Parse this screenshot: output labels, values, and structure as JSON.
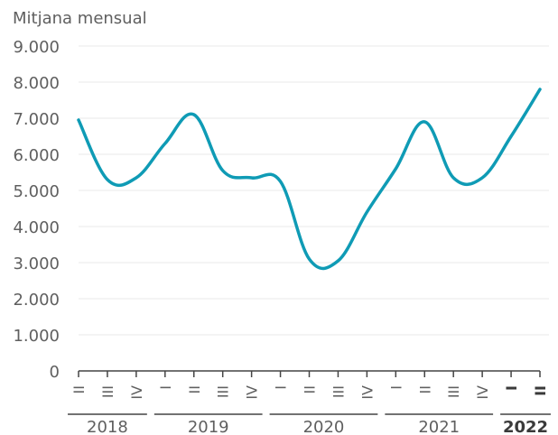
{
  "chart_data": {
    "type": "line",
    "ylabel": "Mitjana mensual",
    "xlabel": "",
    "title": "",
    "ylim": [
      0,
      9000
    ],
    "y_ticks": [
      "0",
      "1.000",
      "2.000",
      "3.000",
      "4.000",
      "5.000",
      "6.000",
      "7.000",
      "8.000",
      "9.000"
    ],
    "y_tick_values": [
      0,
      1000,
      2000,
      3000,
      4000,
      5000,
      6000,
      7000,
      8000,
      9000
    ],
    "grid": true,
    "legend": "none",
    "colors": {
      "line": "#0f9bb5",
      "grid": "#e9e9e9",
      "axis": "#444444",
      "text": "#5f5f5f",
      "bold": "#3a3a3a"
    },
    "categories": [
      "II",
      "III",
      "IV",
      "I",
      "II",
      "III",
      "IV",
      "I",
      "II",
      "III",
      "IV",
      "I",
      "II",
      "III",
      "IV",
      "I",
      "II"
    ],
    "years": [
      {
        "label": "2018",
        "span": 3,
        "bold": false
      },
      {
        "label": "2019",
        "span": 4,
        "bold": false
      },
      {
        "label": "2020",
        "span": 4,
        "bold": false
      },
      {
        "label": "2021",
        "span": 4,
        "bold": false
      },
      {
        "label": "2022",
        "span": 2,
        "bold": true
      }
    ],
    "series": [
      {
        "values": [
          6950,
          5300,
          5350,
          6300,
          7100,
          5550,
          5350,
          5250,
          3100,
          3050,
          4400,
          5600,
          6900,
          5350,
          5350,
          6500,
          7800
        ]
      }
    ]
  }
}
